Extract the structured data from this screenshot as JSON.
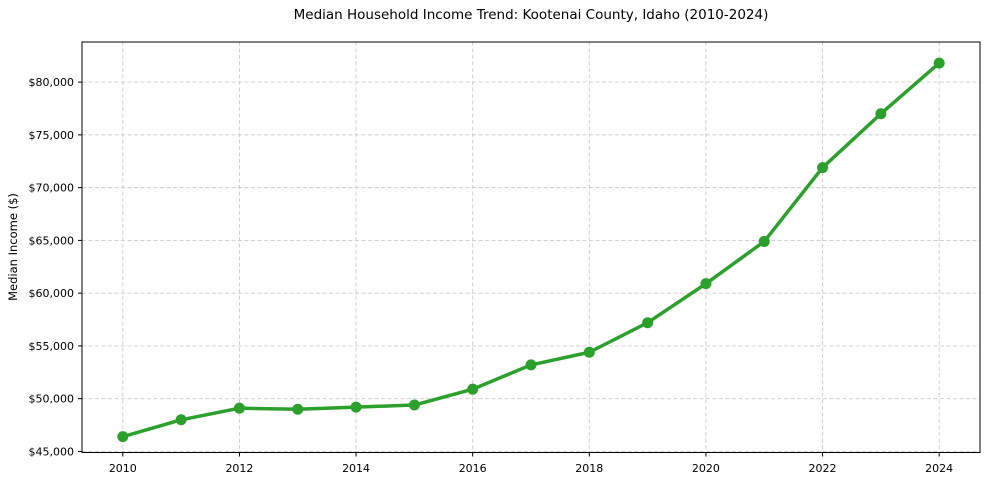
{
  "figure": {
    "background": "#ffffff"
  },
  "chart_data": {
    "type": "line",
    "title": "Median Household Income Trend: Kootenai County, Idaho (2010-2024)",
    "xlabel": "",
    "ylabel": "Median Income ($)",
    "x": [
      2010,
      2011,
      2012,
      2013,
      2014,
      2015,
      2016,
      2017,
      2018,
      2019,
      2020,
      2021,
      2022,
      2023,
      2024
    ],
    "series": [
      {
        "name": "Median Household Income",
        "color": "#2ca02c",
        "values": [
          46400,
          48000,
          49100,
          49000,
          49200,
          49400,
          50900,
          53200,
          54400,
          57200,
          60900,
          64900,
          71900,
          77000,
          81800
        ]
      }
    ],
    "xlim": [
      2009.3,
      2024.7
    ],
    "ylim": [
      44900,
      83800
    ],
    "xticks": {
      "values": [
        2010,
        2012,
        2014,
        2016,
        2018,
        2020,
        2022,
        2024
      ],
      "labels": [
        "2010",
        "2012",
        "2014",
        "2016",
        "2018",
        "2020",
        "2022",
        "2024"
      ]
    },
    "yticks": {
      "values": [
        45000,
        50000,
        55000,
        60000,
        65000,
        70000,
        75000,
        80000
      ],
      "labels": [
        "$45,000",
        "$50,000",
        "$55,000",
        "$60,000",
        "$65,000",
        "$70,000",
        "$75,000",
        "$80,000"
      ]
    },
    "grid": {
      "visible": true,
      "style": "dashed",
      "color": "#cccccc"
    },
    "legend": "none",
    "styles": {
      "line_width": 3.5,
      "marker": "circle",
      "marker_radius": 5.5,
      "tick_font_size": 11,
      "spine_color": "#000000",
      "text_color": "#000000",
      "background": "#ffffff"
    }
  }
}
